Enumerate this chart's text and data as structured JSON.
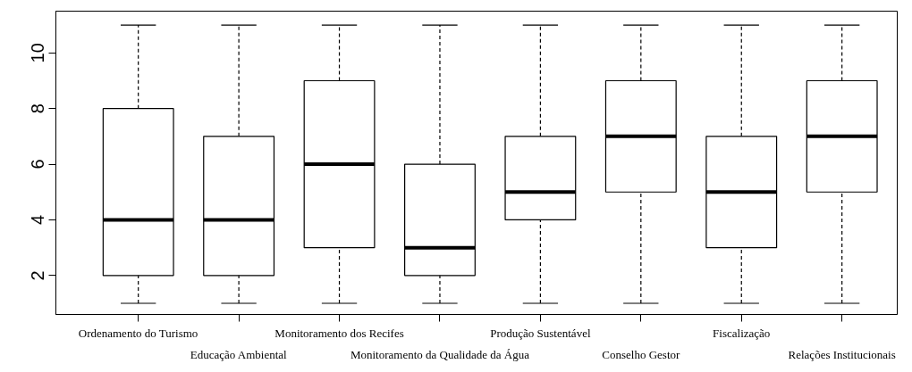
{
  "chart_data": {
    "type": "box",
    "categories": [
      "Ordenamento do Turismo",
      "Educação Ambiental",
      "Monitoramento dos Recifes",
      "Monitoramento da Qualidade da Água",
      "Produção Sustentável",
      "Conselho Gestor",
      "Fiscalização",
      "Relações Institucionais"
    ],
    "boxes": [
      {
        "low": 1,
        "q1": 2,
        "median": 4,
        "q3": 8,
        "high": 11
      },
      {
        "low": 1,
        "q1": 2,
        "median": 4,
        "q3": 7,
        "high": 11
      },
      {
        "low": 1,
        "q1": 3,
        "median": 6,
        "q3": 9,
        "high": 11
      },
      {
        "low": 1,
        "q1": 2,
        "median": 3,
        "q3": 6,
        "high": 11
      },
      {
        "low": 1,
        "q1": 4,
        "median": 5,
        "q3": 7,
        "high": 11
      },
      {
        "low": 1,
        "q1": 5,
        "median": 7,
        "q3": 9,
        "high": 11
      },
      {
        "low": 1,
        "q1": 3,
        "median": 5,
        "q3": 7,
        "high": 11
      },
      {
        "low": 1,
        "q1": 5,
        "median": 7,
        "q3": 9,
        "high": 11
      }
    ],
    "ylim": [
      0.6,
      11.5
    ],
    "yticks": [
      2,
      4,
      6,
      8,
      10
    ],
    "grid": false
  }
}
